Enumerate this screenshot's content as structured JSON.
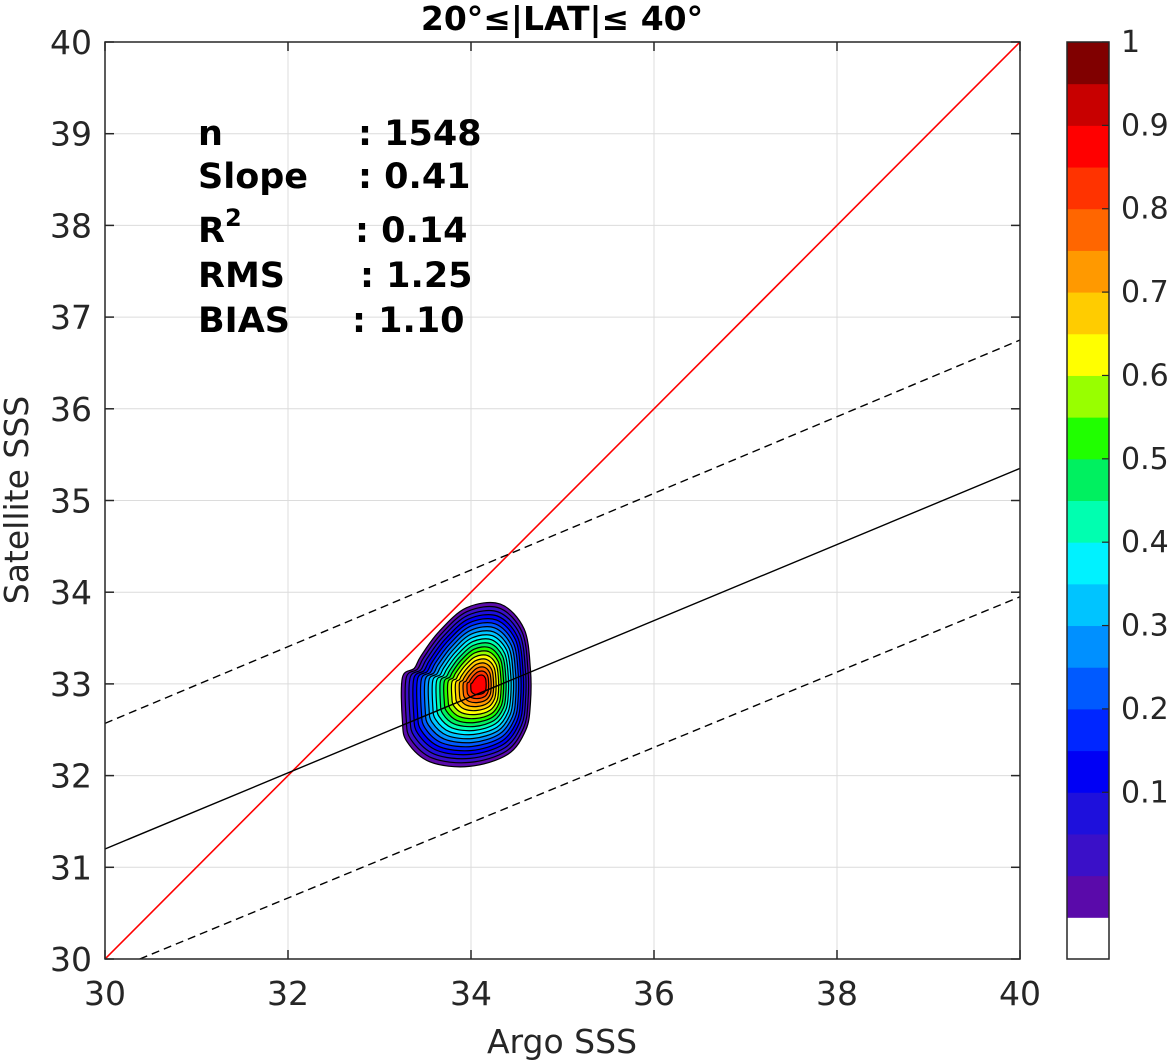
{
  "chart_data": {
    "type": "contour",
    "title": "20°≤|LAT|≤ 40°",
    "xlabel": "Argo SSS",
    "ylabel": "Satellite SSS",
    "xlim": [
      30,
      40
    ],
    "ylim": [
      30,
      40
    ],
    "xticks": [
      "30",
      "32",
      "34",
      "36",
      "38",
      "40"
    ],
    "yticks": [
      "30",
      "31",
      "32",
      "33",
      "34",
      "35",
      "36",
      "37",
      "38",
      "39",
      "40"
    ],
    "grid": true,
    "stats": [
      {
        "label": "n",
        "value": ": 1548"
      },
      {
        "label": "Slope",
        "value": ": 0.41"
      },
      {
        "label": "R",
        "sup": "2",
        "value": ": 0.14"
      },
      {
        "label": "RMS",
        "value": ": 1.25"
      },
      {
        "label": "BIAS",
        "value": ": 1.10"
      }
    ],
    "lines": {
      "one_to_one": {
        "color": "#ff0000",
        "x": [
          30,
          40
        ],
        "y": [
          30,
          40
        ]
      },
      "regression": {
        "color": "#000000",
        "style": "solid",
        "x": [
          30,
          40
        ],
        "y": [
          31.2,
          35.35
        ]
      },
      "upper_bound": {
        "color": "#000000",
        "style": "dashed",
        "x": [
          30,
          40
        ],
        "y": [
          32.57,
          36.75
        ]
      },
      "lower_bound": {
        "color": "#000000",
        "style": "dashed",
        "x": [
          30.38,
          40
        ],
        "y": [
          30,
          33.95
        ]
      }
    },
    "density_center": {
      "x": 34.1,
      "y": 32.95
    },
    "contour_levels": 19,
    "colorbar": {
      "ticks": [
        "0.1",
        "0.2",
        "0.3",
        "0.4",
        "0.5",
        "0.6",
        "0.7",
        "0.8",
        "0.9",
        "1"
      ],
      "tick_values": [
        0.1,
        0.2,
        0.3,
        0.4,
        0.5,
        0.6,
        0.7,
        0.8,
        0.9,
        1.0
      ],
      "colors": [
        "#ffffff",
        "#5a0aaa",
        "#3a10c8",
        "#1e10dc",
        "#0000f5",
        "#0026ff",
        "#005aff",
        "#0090ff",
        "#00c4ff",
        "#00f2ff",
        "#00ffb0",
        "#00f060",
        "#20ff00",
        "#98ff00",
        "#ffff00",
        "#ffcc00",
        "#ff9900",
        "#ff6600",
        "#ff3300",
        "#ff0000",
        "#c80000",
        "#800000"
      ]
    }
  }
}
